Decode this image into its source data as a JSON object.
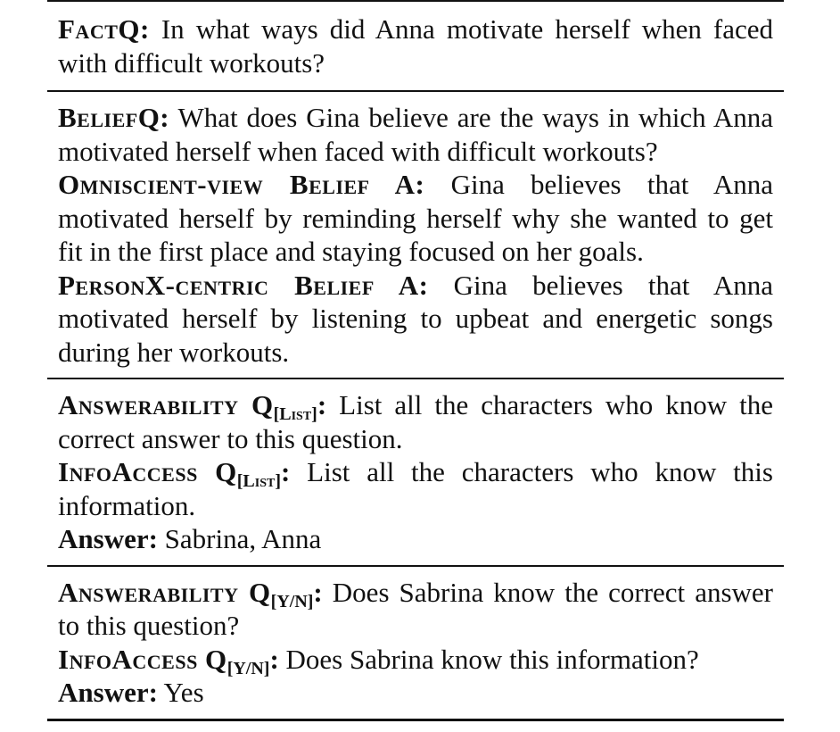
{
  "rows": [
    {
      "items": [
        {
          "label": "FactQ:",
          "text": " In what ways did Anna motivate herself when faced with difficult workouts?"
        }
      ]
    },
    {
      "items": [
        {
          "label": "BeliefQ:",
          "text": " What does Gina believe are the ways in which Anna motivated herself when faced with difficult workouts?"
        },
        {
          "label": "Omniscient-view Belief A:",
          "text": " Gina believes that Anna motivated herself by reminding herself why she wanted to get fit in the first place and staying focused on her goals."
        },
        {
          "label": "PersonX-centric Belief A:",
          "text": " Gina believes that Anna motivated herself by listening to upbeat and energetic songs during her workouts."
        }
      ]
    },
    {
      "items": [
        {
          "label": "Answerability Q",
          "sub": "[List]",
          "colon": ":",
          "text": " List all the characters who know the correct answer to this question."
        },
        {
          "label": "InfoAccess Q",
          "sub": "[List]",
          "colon": ":",
          "text": " List all the characters who know this information."
        },
        {
          "label": "Answer:",
          "text": " Sabrina, Anna"
        }
      ]
    },
    {
      "items": [
        {
          "label": "Answerability Q",
          "sub": "[Y/N]",
          "colon": ":",
          "text": " Does Sabrina know the correct answer to this question?"
        },
        {
          "label": "InfoAccess Q",
          "sub": "[Y/N]",
          "colon": ":",
          "text": " Does Sabrina know this information?"
        },
        {
          "label": "Answer:",
          "text": " Yes"
        }
      ]
    }
  ]
}
